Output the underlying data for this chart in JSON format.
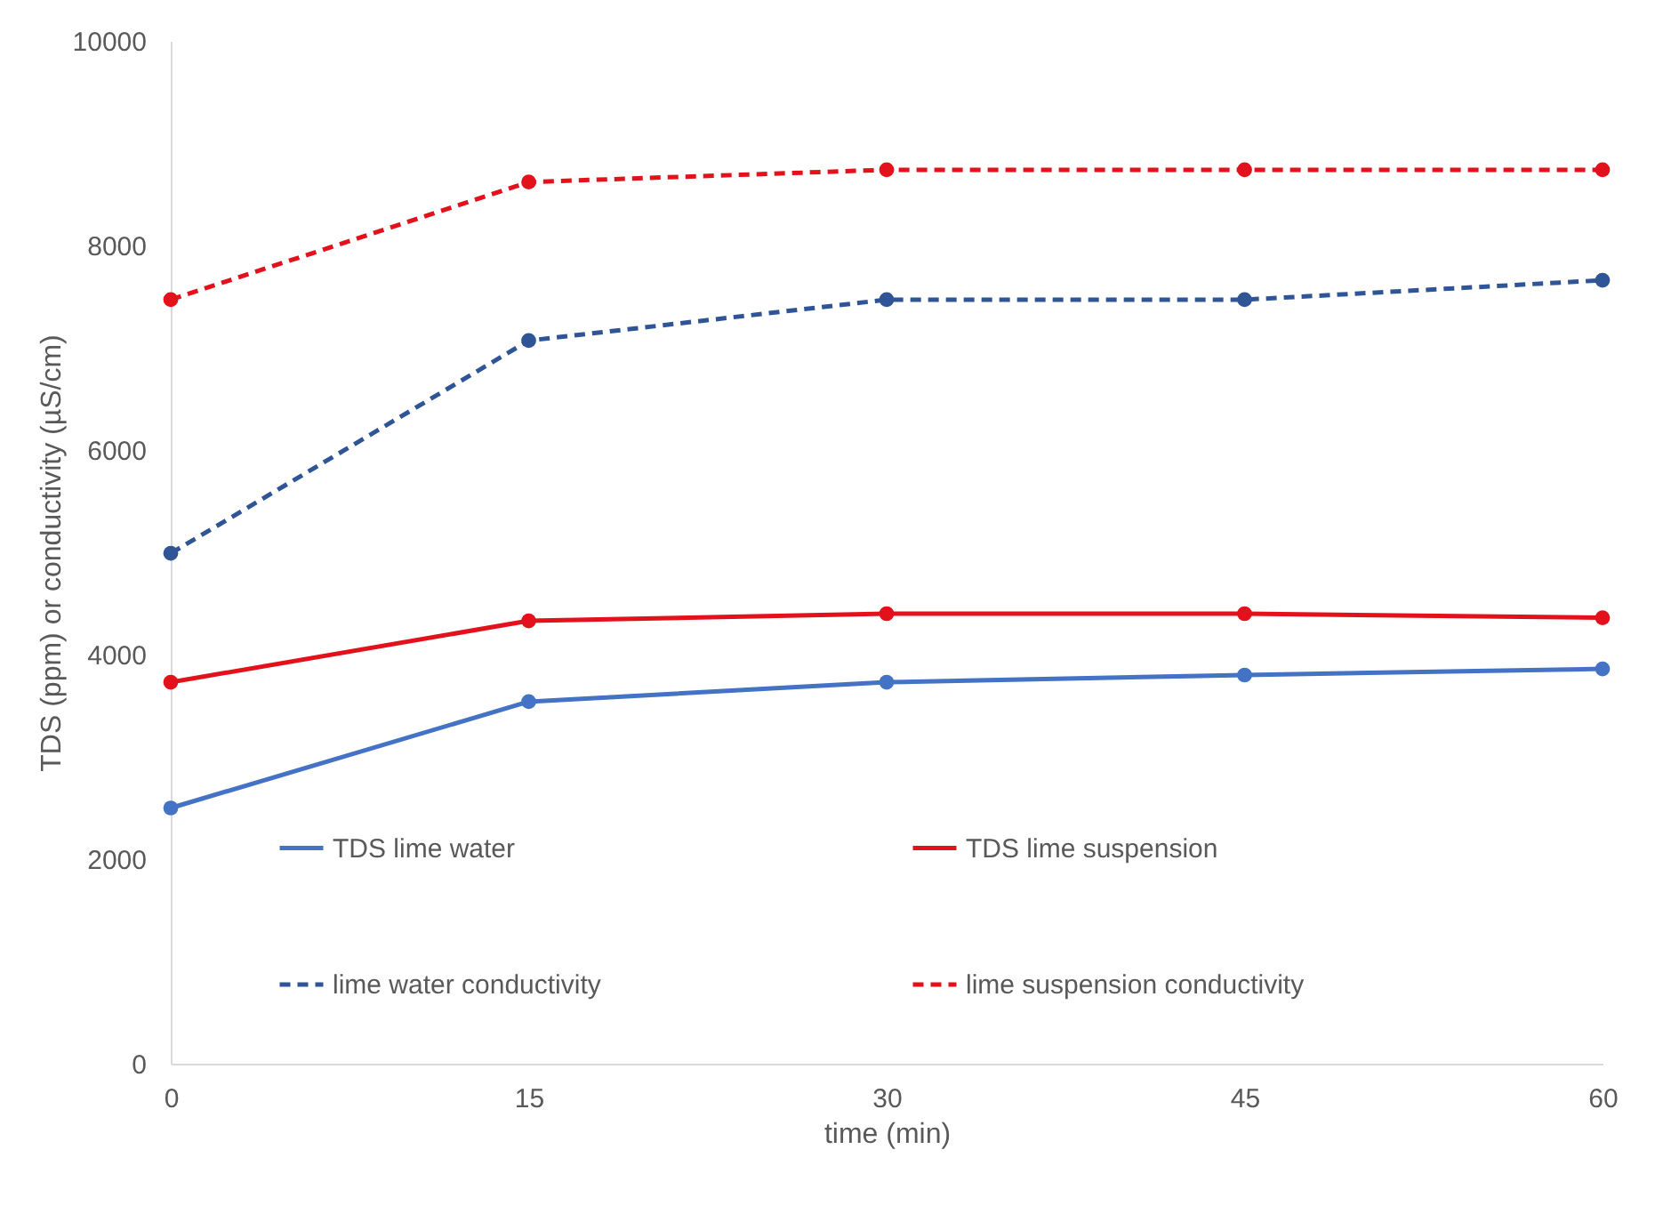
{
  "chart_data": {
    "type": "line",
    "xlabel": "time (min)",
    "ylabel": "TDS (ppm) or conductivity (µS/cm)",
    "x": [
      0,
      15,
      30,
      45,
      60
    ],
    "series": [
      {
        "name": "TDS lime water",
        "color": "#4472c4",
        "line_style": "solid",
        "values": [
          2500,
          3540,
          3730,
          3800,
          3860
        ]
      },
      {
        "name": "TDS lime suspension",
        "color": "#e3111b",
        "line_style": "solid",
        "values": [
          3730,
          4330,
          4400,
          4400,
          4360
        ]
      },
      {
        "name": "lime water conductivity",
        "color": "#2f5597",
        "line_style": "dashed",
        "values": [
          4990,
          7070,
          7470,
          7470,
          7660
        ]
      },
      {
        "name": "lime suspension conductivity",
        "color": "#e3111b",
        "line_style": "dashed",
        "values": [
          7470,
          8620,
          8740,
          8740,
          8740
        ]
      }
    ],
    "xlim": [
      0,
      60
    ],
    "xticks": [
      0,
      15,
      30,
      45,
      60
    ],
    "ylim": [
      0,
      10000
    ],
    "yticks": [
      0,
      2000,
      4000,
      6000,
      8000,
      10000
    ],
    "grid": false,
    "legend": "bottom",
    "marker": "circle"
  }
}
